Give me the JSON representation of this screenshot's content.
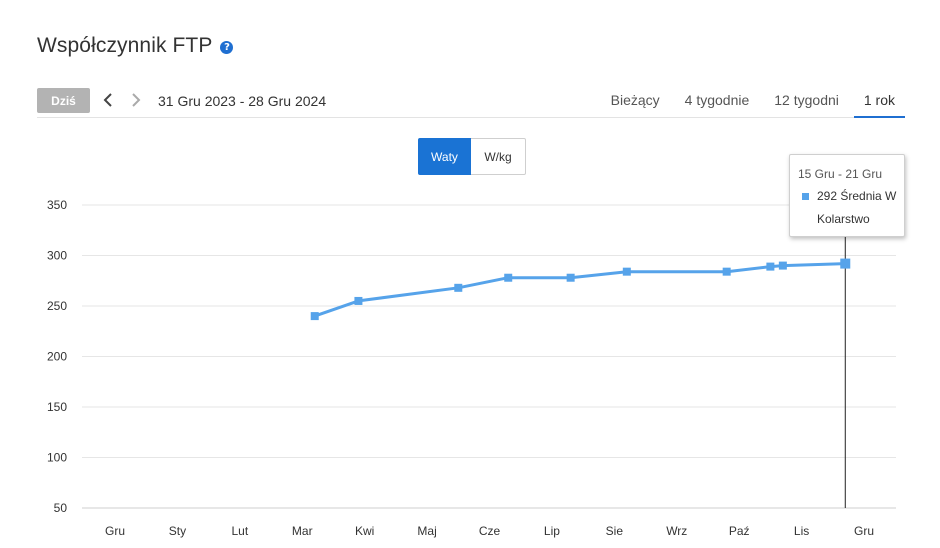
{
  "header": {
    "title": "Współczynnik FTP",
    "help_icon": "question-circle-icon"
  },
  "toolbar": {
    "today_label": "Dziś",
    "date_range": "31 Gru 2023 - 28 Gru 2024",
    "period_tabs": [
      {
        "label": "Bieżący",
        "active": false
      },
      {
        "label": "4 tygodnie",
        "active": false
      },
      {
        "label": "12 tygodni",
        "active": false
      },
      {
        "label": "1 rok",
        "active": true
      }
    ]
  },
  "unit_toggle": {
    "options": [
      "Waty",
      "W/kg"
    ],
    "selected": "Waty"
  },
  "colors": {
    "accent": "#1a73d4",
    "series": "#56a3ea",
    "today_button": "#b3b3b3",
    "grid": "#e6e6e6"
  },
  "chart_data": {
    "type": "line",
    "ylim": [
      50,
      350
    ],
    "yticks": [
      50,
      100,
      150,
      200,
      250,
      300,
      350
    ],
    "xticks": [
      "Gru",
      "Sty",
      "Lut",
      "Mar",
      "Kwi",
      "Maj",
      "Cze",
      "Lip",
      "Sie",
      "Wrz",
      "Paź",
      "Lis",
      "Gru"
    ],
    "x_domain": [
      0,
      12
    ],
    "grid": true,
    "series": [
      {
        "x": [
          3.2,
          3.9,
          5.5,
          6.3,
          7.3,
          8.2,
          9.8,
          10.5,
          10.7,
          11.7
        ],
        "values": [
          240,
          255,
          268,
          278,
          278,
          284,
          284,
          289,
          290,
          292
        ]
      }
    ],
    "crosshair_x": 11.7
  },
  "tooltip": {
    "range": "15 Gru - 21 Gru",
    "value_text": "292 Średnia W",
    "sport": "Kolarstwo"
  }
}
